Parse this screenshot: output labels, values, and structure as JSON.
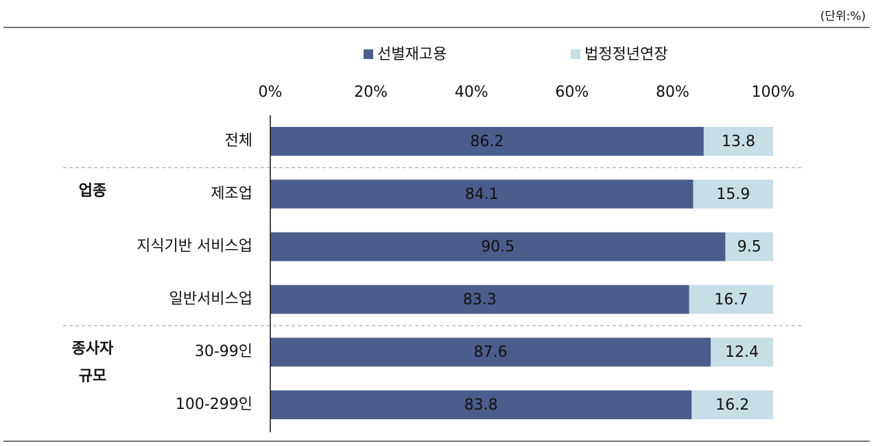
{
  "chart_data": {
    "type": "stacked_barh",
    "unit_label": "(단위:%)",
    "categories": [
      "전체",
      "제조업",
      "지식기반 서비스업",
      "일반서비스업",
      "30-99인",
      "100-299인"
    ],
    "group_labels": [
      null,
      "업종",
      null,
      null,
      "종사자 규모",
      null
    ],
    "series": [
      {
        "name": "선별재고용",
        "color": "#4a5d8c",
        "values": [
          86.2,
          84.1,
          90.5,
          83.3,
          87.6,
          83.8
        ]
      },
      {
        "name": "법정정년연장",
        "color": "#c6dee6",
        "values": [
          13.8,
          15.9,
          9.5,
          16.7,
          12.4,
          16.2
        ]
      }
    ],
    "xlim": [
      0,
      100
    ],
    "xticks": [
      {
        "value": 0,
        "label": "0%"
      },
      {
        "value": 20,
        "label": "20%"
      },
      {
        "value": 40,
        "label": "40%"
      },
      {
        "value": 60,
        "label": "60%"
      },
      {
        "value": 80,
        "label": "80%"
      },
      {
        "value": 100,
        "label": "100%"
      }
    ],
    "legend": "top"
  }
}
